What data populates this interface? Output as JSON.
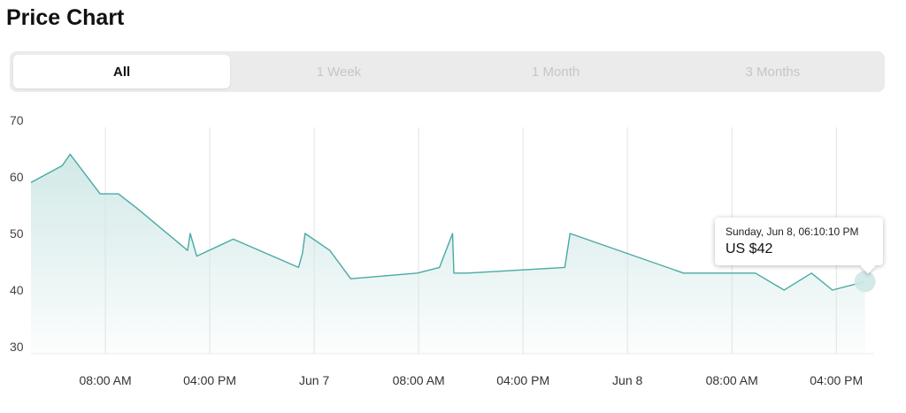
{
  "page": {
    "title": "Price Chart"
  },
  "tabs": [
    {
      "label": "All",
      "active": true
    },
    {
      "label": "1 Week",
      "active": false
    },
    {
      "label": "1 Month",
      "active": false
    },
    {
      "label": "3 Months",
      "active": false
    }
  ],
  "tooltip": {
    "date": "Sunday, Jun 8, 06:10:10 PM",
    "price": "US $42"
  },
  "colors": {
    "line": "#4aa9a4",
    "fill_top": "#cfe8e6",
    "grid": "#e2e2e2",
    "tab_bg": "#ebebeb",
    "tab_inactive_text": "#c6c6c6"
  },
  "chart_data": {
    "type": "area",
    "title": "",
    "xlabel": "",
    "ylabel": "",
    "ylim": [
      30,
      70
    ],
    "yticks": [
      30,
      40,
      50,
      60,
      70
    ],
    "grid": {
      "vertical": true,
      "horizontal": false
    },
    "legend": "none",
    "x_unit": "hour",
    "x_ticks": [
      {
        "label": "08:00 AM",
        "at": 8
      },
      {
        "label": "04:00 PM",
        "at": 16
      },
      {
        "label": "Jun 7",
        "at": 24
      },
      {
        "label": "08:00 AM",
        "at": 32
      },
      {
        "label": "04:00 PM",
        "at": 40
      },
      {
        "label": "Jun 8",
        "at": 48
      },
      {
        "label": "08:00 AM",
        "at": 56
      },
      {
        "label": "04:00 PM",
        "at": 64
      }
    ],
    "xlim": [
      2.3,
      66.9
    ],
    "series": [
      {
        "points": [
          [
            2.3,
            59
          ],
          [
            4.7,
            62
          ],
          [
            5.3,
            64
          ],
          [
            7.6,
            57
          ],
          [
            9.0,
            57
          ],
          [
            10.4,
            54.5
          ],
          [
            14.3,
            47
          ],
          [
            14.5,
            50
          ],
          [
            15.0,
            46
          ],
          [
            17.8,
            49
          ],
          [
            22.8,
            44
          ],
          [
            23.1,
            46.5
          ],
          [
            23.3,
            50
          ],
          [
            25.2,
            47
          ],
          [
            26.8,
            42
          ],
          [
            31.9,
            43
          ],
          [
            33.6,
            44
          ],
          [
            34.6,
            50
          ],
          [
            34.7,
            43
          ],
          [
            35.7,
            43
          ],
          [
            43.2,
            44
          ],
          [
            43.6,
            50
          ],
          [
            52.3,
            43
          ],
          [
            57.8,
            43
          ],
          [
            60.0,
            40
          ],
          [
            62.1,
            43
          ],
          [
            63.7,
            40
          ],
          [
            66.2,
            41.5
          ]
        ]
      }
    ],
    "highlight": {
      "x": 66.2,
      "y": 41.5
    }
  }
}
